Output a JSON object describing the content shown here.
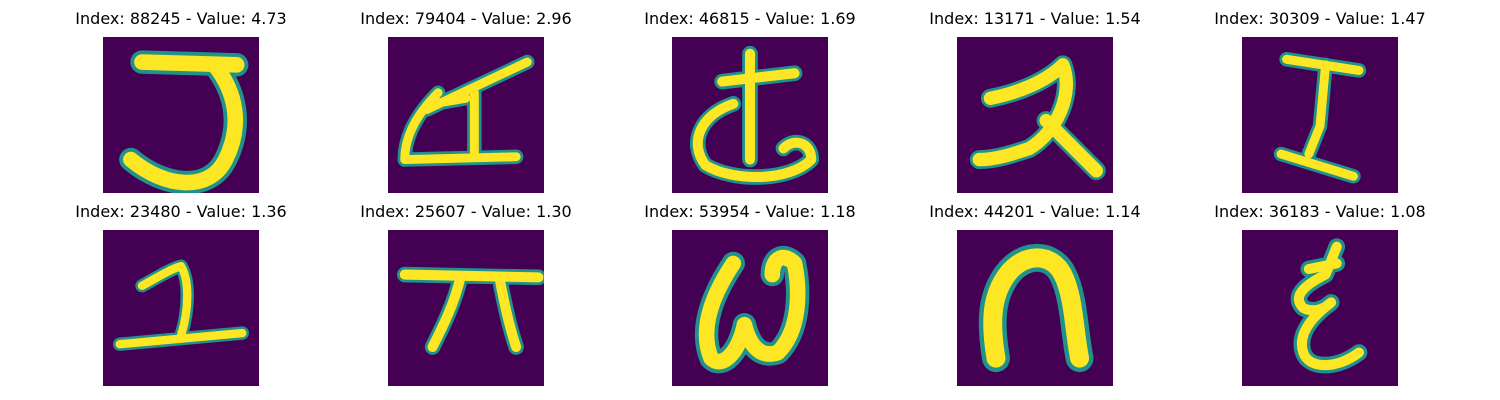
{
  "figure": {
    "background_color": "#440154",
    "stroke_color": "#fde725",
    "edge_colors": [
      "#5ec962",
      "#21918c",
      "#3b528b"
    ]
  },
  "tiles": [
    {
      "title": "Index: 88245 - Value: 4.73"
    },
    {
      "title": "Index: 79404 - Value: 2.96"
    },
    {
      "title": "Index: 46815 - Value: 1.69"
    },
    {
      "title": "Index: 13171 - Value: 1.54"
    },
    {
      "title": "Index: 30309 - Value: 1.47"
    },
    {
      "title": "Index: 23480 - Value: 1.36"
    },
    {
      "title": "Index: 25607 - Value: 1.30"
    },
    {
      "title": "Index: 53954 - Value: 1.18"
    },
    {
      "title": "Index: 44201 - Value: 1.14"
    },
    {
      "title": "Index: 36183 - Value: 1.08"
    }
  ]
}
